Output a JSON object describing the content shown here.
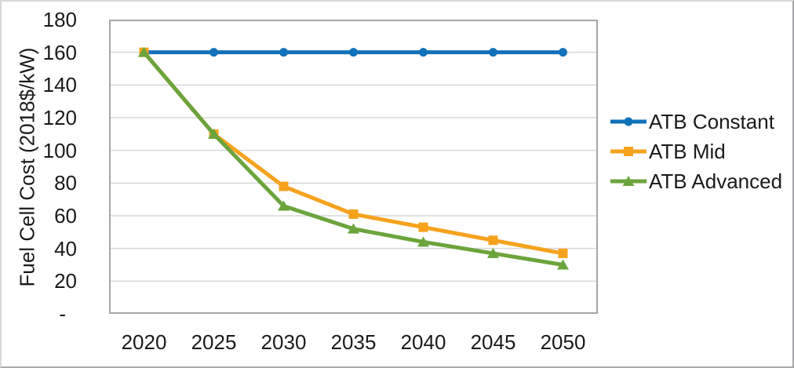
{
  "chart_data": {
    "type": "line",
    "title": "",
    "xlabel": "",
    "ylabel": "Fuel Cell Cost (2018$/kW)",
    "categories": [
      "2020",
      "2025",
      "2030",
      "2035",
      "2040",
      "2045",
      "2050"
    ],
    "series": [
      {
        "name": "ATB Constant",
        "color": "#1171B9",
        "marker": "circle",
        "values": [
          160,
          160,
          160,
          160,
          160,
          160,
          160
        ]
      },
      {
        "name": "ATB Mid",
        "color": "#F6A21D",
        "marker": "square",
        "values": [
          160,
          110,
          78,
          61,
          53,
          45,
          37
        ]
      },
      {
        "name": "ATB Advanced",
        "color": "#6BA43C",
        "marker": "triangle",
        "values": [
          160,
          110,
          66,
          52,
          44,
          37,
          30
        ]
      }
    ],
    "ylim": [
      0,
      180
    ],
    "ytick_step": 20,
    "ytick_labels": [
      "-",
      "20",
      "40",
      "60",
      "80",
      "100",
      "120",
      "140",
      "160",
      "180"
    ],
    "grid": true,
    "legend_position": "right",
    "gridline_color": "#D9D9D9",
    "plot_border_color": "#A6A6A6",
    "text_color": "#1A1A1A"
  }
}
